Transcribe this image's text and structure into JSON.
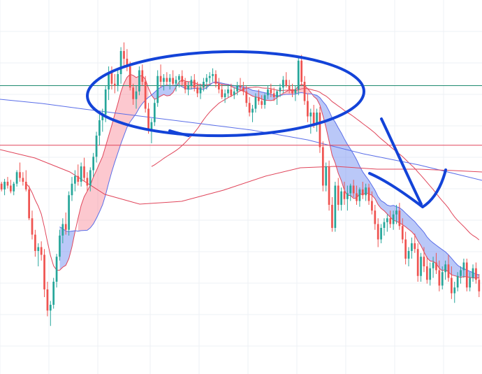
{
  "chart_data": {
    "type": "candlestick",
    "grid": true,
    "x": [],
    "candles": [
      [
        298,
        300,
        290,
        292
      ],
      [
        292,
        303,
        286,
        300
      ],
      [
        300,
        305,
        293,
        296
      ],
      [
        296,
        302,
        288,
        290
      ],
      [
        290,
        300,
        286,
        298
      ],
      [
        298,
        312,
        295,
        310
      ],
      [
        310,
        320,
        300,
        304
      ],
      [
        304,
        310,
        296,
        300
      ],
      [
        300,
        312,
        290,
        292
      ],
      [
        292,
        296,
        260,
        262
      ],
      [
        262,
        270,
        240,
        245
      ],
      [
        245,
        250,
        222,
        228
      ],
      [
        228,
        236,
        212,
        232
      ],
      [
        232,
        238,
        218,
        224
      ],
      [
        224,
        230,
        180,
        188
      ],
      [
        188,
        196,
        160,
        166
      ],
      [
        166,
        176,
        150,
        172
      ],
      [
        172,
        200,
        168,
        196
      ],
      [
        196,
        225,
        190,
        222
      ],
      [
        222,
        250,
        218,
        244
      ],
      [
        244,
        262,
        236,
        256
      ],
      [
        256,
        268,
        245,
        250
      ],
      [
        250,
        290,
        244,
        286
      ],
      [
        286,
        305,
        280,
        298
      ],
      [
        298,
        312,
        290,
        306
      ],
      [
        306,
        318,
        296,
        300
      ],
      [
        300,
        320,
        295,
        316
      ],
      [
        316,
        325,
        300,
        304
      ],
      [
        304,
        310,
        290,
        296
      ],
      [
        296,
        315,
        290,
        312
      ],
      [
        312,
        330,
        305,
        326
      ],
      [
        326,
        352,
        320,
        348
      ],
      [
        348,
        370,
        338,
        364
      ],
      [
        364,
        376,
        352,
        370
      ],
      [
        370,
        400,
        362,
        396
      ],
      [
        396,
        420,
        385,
        414
      ],
      [
        414,
        420,
        396,
        402
      ],
      [
        402,
        412,
        392,
        400
      ],
      [
        400,
        416,
        394,
        412
      ],
      [
        412,
        440,
        402,
        436
      ],
      [
        436,
        445,
        420,
        428
      ],
      [
        428,
        438,
        415,
        420
      ],
      [
        420,
        425,
        395,
        398
      ],
      [
        398,
        402,
        380,
        386
      ],
      [
        386,
        400,
        376,
        394
      ],
      [
        394,
        420,
        390,
        416
      ],
      [
        416,
        422,
        400,
        404
      ],
      [
        404,
        410,
        372,
        376
      ],
      [
        376,
        382,
        350,
        354
      ],
      [
        354,
        366,
        340,
        362
      ],
      [
        362,
        386,
        358,
        382
      ],
      [
        382,
        416,
        378,
        410
      ],
      [
        410,
        422,
        398,
        404
      ],
      [
        404,
        412,
        395,
        408
      ],
      [
        408,
        414,
        400,
        404
      ],
      [
        404,
        412,
        396,
        408
      ],
      [
        408,
        416,
        400,
        402
      ],
      [
        402,
        410,
        394,
        406
      ],
      [
        406,
        412,
        398,
        410
      ],
      [
        410,
        416,
        400,
        404
      ],
      [
        404,
        408,
        392,
        396
      ],
      [
        396,
        404,
        390,
        400
      ],
      [
        400,
        410,
        396,
        406
      ],
      [
        406,
        412,
        394,
        398
      ],
      [
        398,
        404,
        388,
        392
      ],
      [
        392,
        402,
        386,
        398
      ],
      [
        398,
        408,
        394,
        404
      ],
      [
        404,
        412,
        396,
        408
      ],
      [
        408,
        414,
        402,
        410
      ],
      [
        410,
        418,
        404,
        412
      ],
      [
        412,
        416,
        398,
        402
      ],
      [
        402,
        408,
        392,
        396
      ],
      [
        396,
        402,
        386,
        388
      ],
      [
        388,
        396,
        382,
        392
      ],
      [
        392,
        400,
        388,
        396
      ],
      [
        396,
        402,
        388,
        390
      ],
      [
        390,
        398,
        386,
        394
      ],
      [
        394,
        404,
        390,
        400
      ],
      [
        400,
        408,
        394,
        398
      ],
      [
        398,
        404,
        390,
        394
      ],
      [
        394,
        400,
        378,
        382
      ],
      [
        382,
        388,
        368,
        372
      ],
      [
        372,
        380,
        362,
        376
      ],
      [
        376,
        392,
        372,
        388
      ],
      [
        388,
        396,
        380,
        384
      ],
      [
        384,
        390,
        376,
        380
      ],
      [
        380,
        392,
        376,
        390
      ],
      [
        390,
        400,
        386,
        396
      ],
      [
        396,
        402,
        388,
        392
      ],
      [
        392,
        398,
        384,
        388
      ],
      [
        388,
        396,
        380,
        394
      ],
      [
        394,
        402,
        388,
        398
      ],
      [
        398,
        410,
        392,
        406
      ],
      [
        406,
        414,
        398,
        400
      ],
      [
        400,
        406,
        392,
        396
      ],
      [
        396,
        402,
        388,
        392
      ],
      [
        392,
        400,
        384,
        396
      ],
      [
        396,
        430,
        390,
        426
      ],
      [
        426,
        432,
        400,
        404
      ],
      [
        404,
        410,
        380,
        384
      ],
      [
        384,
        392,
        362,
        368
      ],
      [
        368,
        376,
        350,
        372
      ],
      [
        372,
        380,
        356,
        360
      ],
      [
        360,
        376,
        352,
        372
      ],
      [
        372,
        378,
        330,
        336
      ],
      [
        336,
        342,
        290,
        296
      ],
      [
        296,
        320,
        290,
        316
      ],
      [
        316,
        322,
        270,
        276
      ],
      [
        276,
        284,
        248,
        252
      ],
      [
        252,
        300,
        248,
        296
      ],
      [
        296,
        304,
        270,
        276
      ],
      [
        276,
        294,
        270,
        290
      ],
      [
        290,
        300,
        276,
        282
      ],
      [
        282,
        296,
        270,
        288
      ],
      [
        288,
        298,
        280,
        296
      ],
      [
        296,
        302,
        284,
        288
      ],
      [
        288,
        296,
        276,
        280
      ],
      [
        280,
        294,
        274,
        292
      ],
      [
        292,
        300,
        282,
        286
      ],
      [
        286,
        298,
        280,
        294
      ],
      [
        294,
        298,
        276,
        280
      ],
      [
        280,
        290,
        266,
        270
      ],
      [
        270,
        276,
        250,
        256
      ],
      [
        256,
        262,
        232,
        240
      ],
      [
        240,
        256,
        236,
        252
      ],
      [
        252,
        262,
        244,
        258
      ],
      [
        258,
        266,
        248,
        262
      ],
      [
        262,
        270,
        252,
        256
      ],
      [
        256,
        270,
        250,
        266
      ],
      [
        266,
        276,
        256,
        270
      ],
      [
        270,
        278,
        250,
        254
      ],
      [
        254,
        262,
        236,
        240
      ],
      [
        240,
        248,
        214,
        220
      ],
      [
        220,
        232,
        212,
        228
      ],
      [
        228,
        242,
        220,
        236
      ],
      [
        236,
        246,
        226,
        230
      ],
      [
        230,
        236,
        196,
        202
      ],
      [
        202,
        226,
        196,
        222
      ],
      [
        222,
        232,
        206,
        212
      ],
      [
        212,
        222,
        194,
        198
      ],
      [
        198,
        216,
        192,
        210
      ],
      [
        210,
        222,
        200,
        216
      ],
      [
        216,
        226,
        204,
        208
      ],
      [
        208,
        218,
        186,
        192
      ],
      [
        192,
        212,
        188,
        206
      ],
      [
        206,
        218,
        198,
        214
      ],
      [
        214,
        224,
        196,
        200
      ],
      [
        200,
        212,
        178,
        184
      ],
      [
        184,
        196,
        174,
        190
      ],
      [
        190,
        206,
        186,
        202
      ],
      [
        202,
        212,
        194,
        208
      ],
      [
        208,
        220,
        200,
        216
      ],
      [
        216,
        220,
        186,
        190
      ],
      [
        190,
        206,
        186,
        200
      ],
      [
        200,
        214,
        196,
        210
      ],
      [
        210,
        216,
        194,
        198
      ],
      [
        198,
        204,
        180,
        186
      ]
    ],
    "overlays": {
      "ma_fast": [],
      "ma_slow": [],
      "horizontal_levels": [
        400,
        338
      ]
    }
  }
}
